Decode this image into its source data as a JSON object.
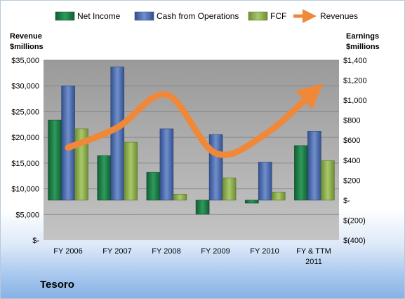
{
  "chart_data": {
    "type": "bar",
    "title": "Tesoro",
    "categories": [
      "FY 2006",
      "FY 2007",
      "FY 2008",
      "FY 2009",
      "FY 2010",
      "FY & TTM 2011"
    ],
    "series": [
      {
        "name": "Net Income",
        "axis": "right",
        "color": "#1f7a46",
        "values": [
          802,
          445,
          278,
          -140,
          -29,
          546
        ]
      },
      {
        "name": "Cash from Operations",
        "axis": "right",
        "color": "#4f6fb0",
        "values": [
          1142,
          1332,
          714,
          657,
          381,
          690
        ]
      },
      {
        "name": "FCF",
        "axis": "right",
        "color": "#90b04e",
        "values": [
          714,
          580,
          60,
          223,
          82,
          395
        ]
      },
      {
        "name": "Revenues",
        "axis": "left",
        "type": "line",
        "color": "#f0883a",
        "values": [
          18000,
          21900,
          28300,
          16900,
          20600,
          29000
        ]
      }
    ],
    "left_axis": {
      "title_line1": "Revenue",
      "title_line2": "$millions",
      "ylim": [
        0,
        35000
      ],
      "ticks": [
        "$-",
        "$5,000",
        "$10,000",
        "$15,000",
        "$20,000",
        "$25,000",
        "$30,000",
        "$35,000"
      ]
    },
    "right_axis": {
      "title_line1": "Earnings",
      "title_line2": "$millions",
      "ylim": [
        -400,
        1400
      ],
      "ticks": [
        "$(400)",
        "$(200)",
        "$-",
        "$200",
        "$400",
        "$600",
        "$800",
        "$1,000",
        "$1,200",
        "$1,400"
      ]
    },
    "legend_position": "top",
    "grid": true,
    "plot_area_color": "#b3b3b3"
  },
  "legend": {
    "net_income": "Net Income",
    "cfo": "Cash from Operations",
    "fcf": "FCF",
    "revenues": "Revenues"
  },
  "axis_titles": {
    "left1": "Revenue",
    "left2": "$millions",
    "right1": "Earnings",
    "right2": "$millions"
  },
  "category_labels": {
    "c0": "FY 2006",
    "c1": "FY 2007",
    "c2": "FY 2008",
    "c3": "FY 2009",
    "c4": "FY 2010",
    "c5_line1": "FY & TTM",
    "c5_line2": "2011"
  },
  "company_name": "Tesoro"
}
